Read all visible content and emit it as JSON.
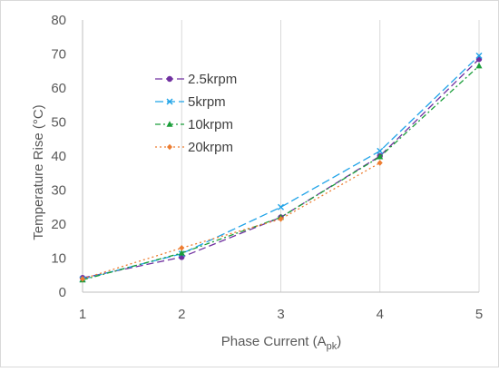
{
  "chart_data": {
    "type": "line",
    "xlabel": "Phase Current (A",
    "xlabel_sub": "pk",
    "xlabel_close": ")",
    "ylabel": "Temperature Rise (°C)",
    "x": [
      1,
      2,
      3,
      4,
      5
    ],
    "xlim": [
      1,
      5
    ],
    "ylim": [
      0,
      80
    ],
    "x_ticks": [
      "1",
      "2",
      "3",
      "4",
      "5"
    ],
    "y_ticks": [
      "0",
      "10",
      "20",
      "30",
      "40",
      "50",
      "60",
      "70",
      "80"
    ],
    "grid": "vertical",
    "legend_position": "left-inside",
    "series": [
      {
        "name": "2.5krpm",
        "values": [
          4.2,
          10.3,
          22.0,
          40.0,
          68.5
        ],
        "color": "#7030A0",
        "marker": "circle",
        "dash": "8 4"
      },
      {
        "name": "5krpm",
        "values": [
          3.8,
          11.3,
          25.0,
          41.5,
          69.5
        ],
        "color": "#1FA3E8",
        "marker": "x",
        "dash": "9 4"
      },
      {
        "name": "10krpm",
        "values": [
          3.6,
          11.5,
          22.0,
          39.8,
          66.5
        ],
        "color": "#1B9E3A",
        "marker": "triangle",
        "dash": "6 3 2 3"
      },
      {
        "name": "20krpm",
        "values": [
          3.9,
          13.0,
          21.5,
          38.0,
          null
        ],
        "color": "#ED7D31",
        "marker": "diamond",
        "dash": "2 3"
      }
    ]
  }
}
